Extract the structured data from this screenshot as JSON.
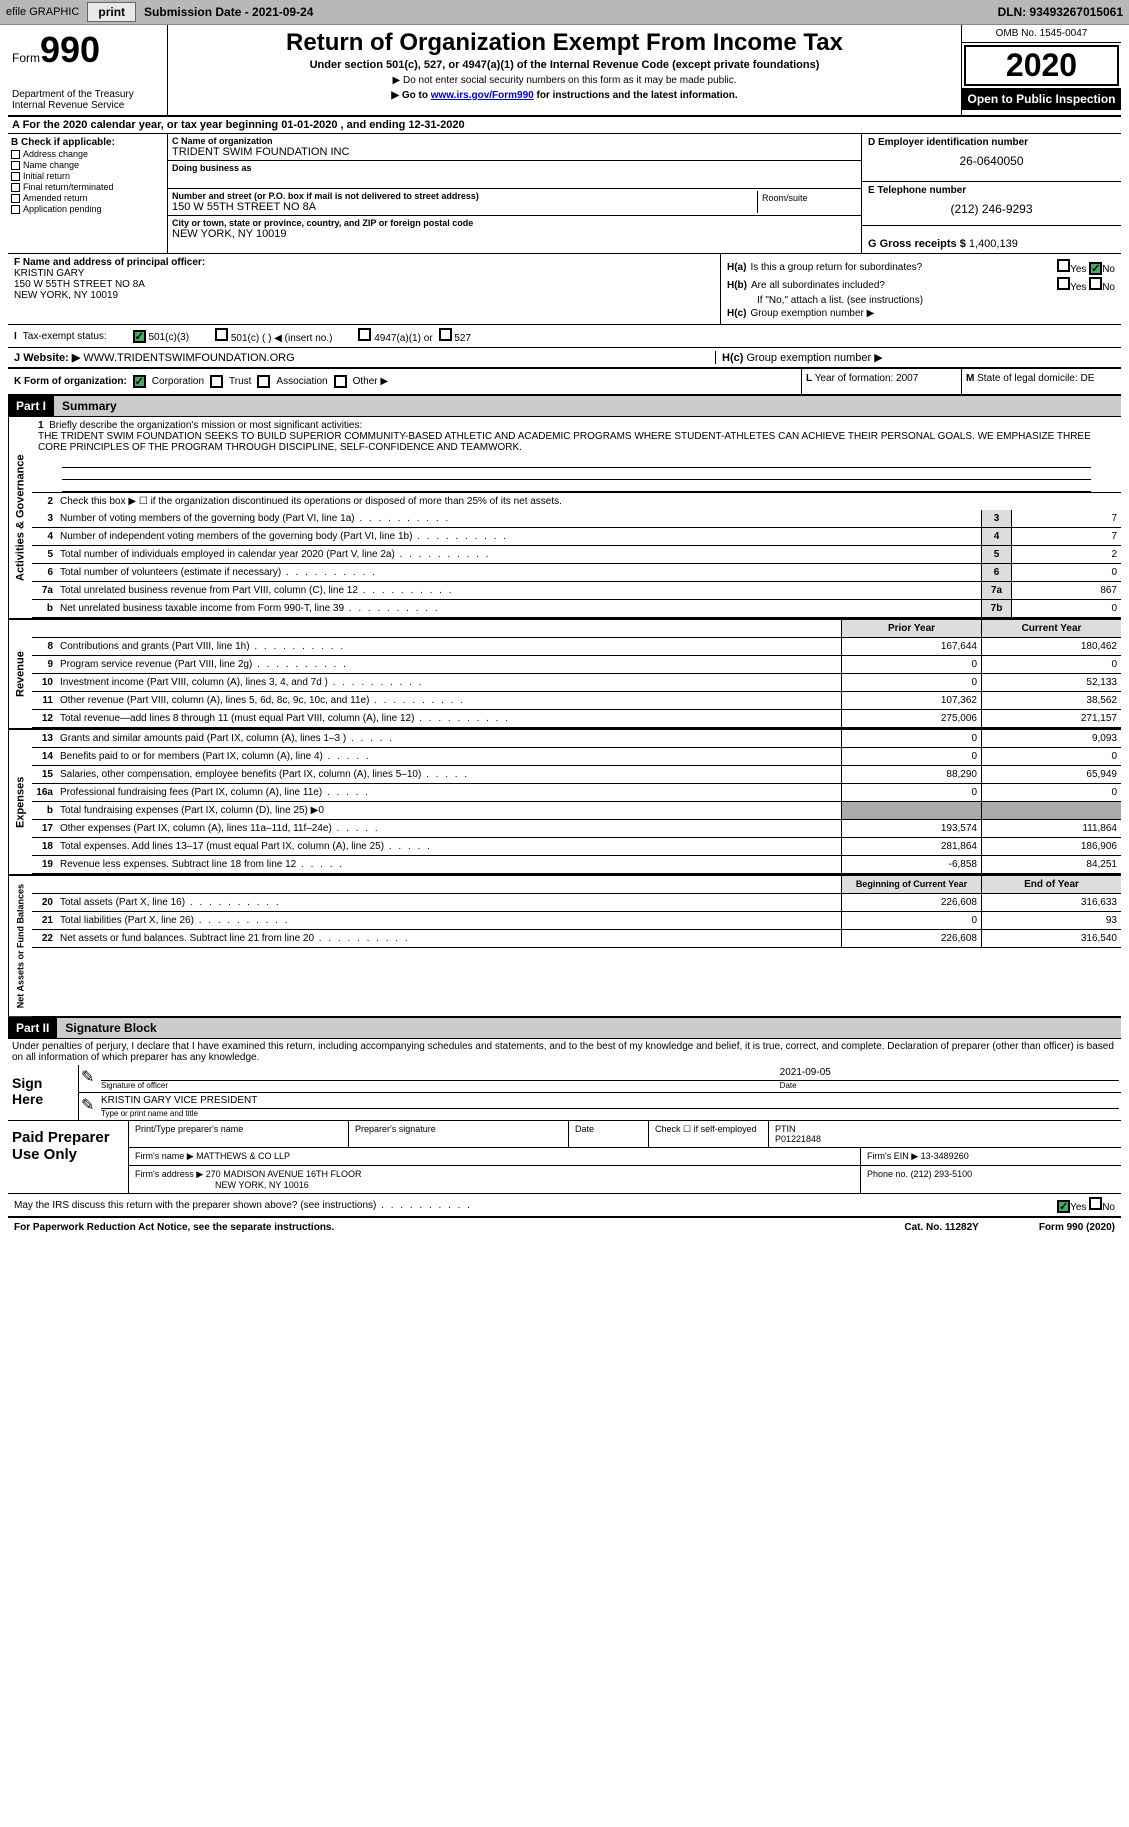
{
  "toolbar": {
    "efile_label": "efile GRAPHIC",
    "print_label": "print",
    "submission_label": "Submission Date - 2021-09-24",
    "dln_label": "DLN: 93493267015061"
  },
  "header": {
    "form_word": "Form",
    "form_number": "990",
    "dept": "Department of the Treasury\nInternal Revenue Service",
    "title": "Return of Organization Exempt From Income Tax",
    "subtitle": "Under section 501(c), 527, or 4947(a)(1) of the Internal Revenue Code (except private foundations)",
    "note1": "▶ Do not enter social security numbers on this form as it may be made public.",
    "note2_pre": "▶ Go to ",
    "note2_link": "www.irs.gov/Form990",
    "note2_post": " for instructions and the latest information.",
    "omb": "OMB No. 1545-0047",
    "year": "2020",
    "inspection": "Open to Public Inspection"
  },
  "cal_year": "A For the 2020 calendar year, or tax year beginning 01-01-2020   , and ending 12-31-2020",
  "section_b": {
    "header": "B Check if applicable:",
    "items": [
      "Address change",
      "Name change",
      "Initial return",
      "Final return/terminated",
      "Amended return",
      "Application pending"
    ]
  },
  "section_c": {
    "name_lbl": "C Name of organization",
    "name_val": "TRIDENT SWIM FOUNDATION INC",
    "dba_lbl": "Doing business as",
    "addr_lbl": "Number and street (or P.O. box if mail is not delivered to street address)",
    "addr_val": "150 W 55TH STREET NO 8A",
    "room_lbl": "Room/suite",
    "city_lbl": "City or town, state or province, country, and ZIP or foreign postal code",
    "city_val": "NEW YORK, NY  10019"
  },
  "section_d": {
    "lbl": "D Employer identification number",
    "val": "26-0640050"
  },
  "section_e": {
    "lbl": "E Telephone number",
    "val": "(212) 246-9293"
  },
  "section_g": {
    "lbl": "G Gross receipts $",
    "val": "1,400,139"
  },
  "section_f": {
    "lbl": "F Name and address of principal officer:",
    "name": "KRISTIN GARY",
    "addr1": "150 W 55TH STREET NO 8A",
    "addr2": "NEW YORK, NY  10019"
  },
  "section_h": {
    "ha_lbl": "H(a)",
    "ha_txt": "Is this a group return for subordinates?",
    "hb_lbl": "H(b)",
    "hb_txt": "Are all subordinates included?",
    "hb_note": "If \"No,\" attach a list. (see instructions)",
    "hc_lbl": "H(c)",
    "hc_txt": "Group exemption number ▶",
    "yes": "Yes",
    "no": "No"
  },
  "section_i": {
    "lbl": "I",
    "txt": "Tax-exempt status:",
    "opts": [
      "501(c)(3)",
      "501(c) (  ) ◀ (insert no.)",
      "4947(a)(1) or",
      "527"
    ]
  },
  "section_j": {
    "lbl": "J",
    "txt": "Website: ▶",
    "val": "WWW.TRIDENTSWIMFOUNDATION.ORG"
  },
  "section_k": {
    "lbl": "K Form of organization:",
    "opts": [
      "Corporation",
      "Trust",
      "Association",
      "Other ▶"
    ]
  },
  "section_l": {
    "lbl": "L",
    "txt": "Year of formation: 2007"
  },
  "section_m": {
    "lbl": "M",
    "txt": "State of legal domicile: DE"
  },
  "part1": {
    "hdr": "Part I",
    "title": "Summary",
    "line1_num": "1",
    "line1": "Briefly describe the organization's mission or most significant activities:",
    "mission": "THE TRIDENT SWIM FOUNDATION SEEKS TO BUILD SUPERIOR COMMUNITY-BASED ATHLETIC AND ACADEMIC PROGRAMS WHERE STUDENT-ATHLETES CAN ACHIEVE THEIR PERSONAL GOALS. WE EMPHASIZE THREE CORE PRINCIPLES OF THE PROGRAM THROUGH DISCIPLINE, SELF-CONFIDENCE AND TEAMWORK.",
    "line2_num": "2",
    "line2": "Check this box ▶ ☐  if the organization discontinued its operations or disposed of more than 25% of its net assets.",
    "gov_lines": [
      {
        "n": "3",
        "t": "Number of voting members of the governing body (Part VI, line 1a)",
        "box": "3",
        "v": "7"
      },
      {
        "n": "4",
        "t": "Number of independent voting members of the governing body (Part VI, line 1b)",
        "box": "4",
        "v": "7"
      },
      {
        "n": "5",
        "t": "Total number of individuals employed in calendar year 2020 (Part V, line 2a)",
        "box": "5",
        "v": "2"
      },
      {
        "n": "6",
        "t": "Total number of volunteers (estimate if necessary)",
        "box": "6",
        "v": "0"
      },
      {
        "n": "7a",
        "t": "Total unrelated business revenue from Part VIII, column (C), line 12",
        "box": "7a",
        "v": "867"
      },
      {
        "n": "b",
        "t": "Net unrelated business taxable income from Form 990-T, line 39",
        "box": "7b",
        "v": "0"
      }
    ],
    "prior_hdr": "Prior Year",
    "current_hdr": "Current Year",
    "revenue_lines": [
      {
        "n": "8",
        "t": "Contributions and grants (Part VIII, line 1h)",
        "p": "167,644",
        "c": "180,462"
      },
      {
        "n": "9",
        "t": "Program service revenue (Part VIII, line 2g)",
        "p": "0",
        "c": "0"
      },
      {
        "n": "10",
        "t": "Investment income (Part VIII, column (A), lines 3, 4, and 7d )",
        "p": "0",
        "c": "52,133"
      },
      {
        "n": "11",
        "t": "Other revenue (Part VIII, column (A), lines 5, 6d, 8c, 9c, 10c, and 11e)",
        "p": "107,362",
        "c": "38,562"
      },
      {
        "n": "12",
        "t": "Total revenue—add lines 8 through 11 (must equal Part VIII, column (A), line 12)",
        "p": "275,006",
        "c": "271,157"
      }
    ],
    "expense_lines": [
      {
        "n": "13",
        "t": "Grants and similar amounts paid (Part IX, column (A), lines 1–3 )",
        "p": "0",
        "c": "9,093"
      },
      {
        "n": "14",
        "t": "Benefits paid to or for members (Part IX, column (A), line 4)",
        "p": "0",
        "c": "0"
      },
      {
        "n": "15",
        "t": "Salaries, other compensation, employee benefits (Part IX, column (A), lines 5–10)",
        "p": "88,290",
        "c": "65,949"
      },
      {
        "n": "16a",
        "t": "Professional fundraising fees (Part IX, column (A), line 11e)",
        "p": "0",
        "c": "0"
      },
      {
        "n": "b",
        "t": "Total fundraising expenses (Part IX, column (D), line 25) ▶0",
        "p": "",
        "c": "",
        "grey": true
      },
      {
        "n": "17",
        "t": "Other expenses (Part IX, column (A), lines 11a–11d, 11f–24e)",
        "p": "193,574",
        "c": "111,864"
      },
      {
        "n": "18",
        "t": "Total expenses. Add lines 13–17 (must equal Part IX, column (A), line 25)",
        "p": "281,864",
        "c": "186,906"
      },
      {
        "n": "19",
        "t": "Revenue less expenses. Subtract line 18 from line 12",
        "p": "-6,858",
        "c": "84,251"
      }
    ],
    "beg_hdr": "Beginning of Current Year",
    "end_hdr": "End of Year",
    "asset_lines": [
      {
        "n": "20",
        "t": "Total assets (Part X, line 16)",
        "p": "226,608",
        "c": "316,633"
      },
      {
        "n": "21",
        "t": "Total liabilities (Part X, line 26)",
        "p": "0",
        "c": "93"
      },
      {
        "n": "22",
        "t": "Net assets or fund balances. Subtract line 21 from line 20",
        "p": "226,608",
        "c": "316,540"
      }
    ],
    "tab_gov": "Activities & Governance",
    "tab_rev": "Revenue",
    "tab_exp": "Expenses",
    "tab_net": "Net Assets or Fund Balances"
  },
  "part2": {
    "hdr": "Part II",
    "title": "Signature Block",
    "declaration": "Under penalties of perjury, I declare that I have examined this return, including accompanying schedules and statements, and to the best of my knowledge and belief, it is true, correct, and complete. Declaration of preparer (other than officer) is based on all information of which preparer has any knowledge.",
    "sign_here": "Sign Here",
    "sig_officer_lbl": "Signature of officer",
    "sig_date": "2021-09-05",
    "date_lbl": "Date",
    "name_title": "KRISTIN GARY VICE PRESIDENT",
    "name_title_lbl": "Type or print name and title",
    "paid_prep": "Paid Preparer Use Only",
    "prep_name_lbl": "Print/Type preparer's name",
    "prep_sig_lbl": "Preparer's signature",
    "prep_date_lbl": "Date",
    "check_lbl": "Check ☐ if self-employed",
    "ptin_lbl": "PTIN",
    "ptin_val": "P01221848",
    "firm_name_lbl": "Firm's name    ▶",
    "firm_name": "MATTHEWS & CO LLP",
    "firm_ein_lbl": "Firm's EIN ▶",
    "firm_ein": "13-3489260",
    "firm_addr_lbl": "Firm's address ▶",
    "firm_addr1": "270 MADISON AVENUE 16TH FLOOR",
    "firm_addr2": "NEW YORK, NY  10016",
    "phone_lbl": "Phone no.",
    "phone": "(212) 293-5100",
    "discuss": "May the IRS discuss this return with the preparer shown above? (see instructions)",
    "yes": "Yes",
    "no": "No"
  },
  "footer": {
    "paperwork": "For Paperwork Reduction Act Notice, see the separate instructions.",
    "cat": "Cat. No. 11282Y",
    "form": "Form 990 (2020)"
  }
}
